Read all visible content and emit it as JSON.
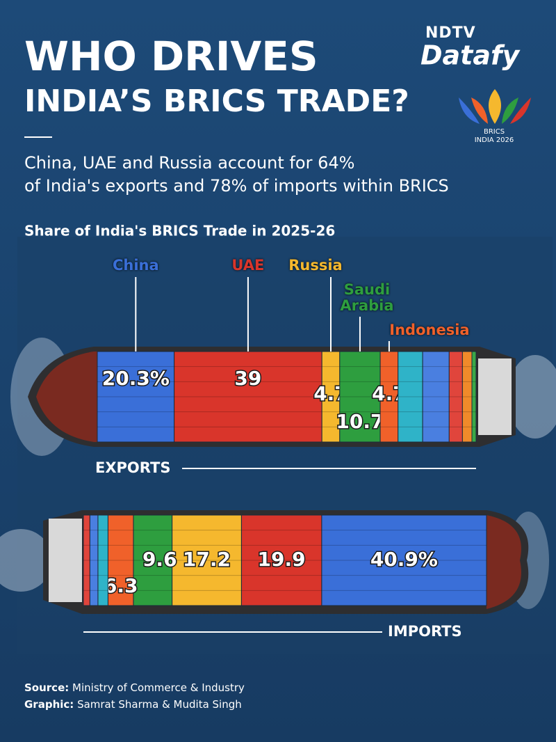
{
  "header": {
    "brand": "NDTV",
    "product": "Datafy",
    "logo_text": "BRICS",
    "logo_subtext": "INDIA 2026",
    "title_line1": "WHO DRIVES",
    "title_line2": "INDIA’S BRICS TRADE?",
    "subtitle_line1": "China, UAE and Russia account for 64%",
    "subtitle_line2": "of India's exports and 78% of imports within BRICS"
  },
  "chart_data": [
    {
      "type": "bar",
      "orientation": "horizontal",
      "stacked": true,
      "title": "Share of India's BRICS Trade in 2025-26",
      "label": "EXPORTS",
      "categories": [
        "China",
        "UAE",
        "Russia",
        "Saudi Arabia",
        "Indonesia",
        null,
        null,
        null,
        null,
        null
      ],
      "values": [
        20.3,
        39,
        4.7,
        10.7,
        4.7,
        6.5,
        7.0,
        3.5,
        2.5,
        1.1
      ],
      "value_labels": [
        "20.3%",
        "39",
        "4.7",
        "10.7",
        "4.7",
        null,
        null,
        null,
        null,
        null
      ],
      "colors": [
        "#3a6fd8",
        "#d9352b",
        "#f5b82e",
        "#2e9e3f",
        "#f0612a",
        "#2fb3c8",
        "#4a7fe0",
        "#e0453c",
        "#f08a2a",
        "#3aa848"
      ],
      "xlim": [
        0,
        100
      ]
    },
    {
      "type": "bar",
      "orientation": "horizontal",
      "stacked": true,
      "x_reversed": true,
      "label": "IMPORTS",
      "values": [
        40.9,
        19.9,
        17.2,
        9.6,
        6.3,
        2.5,
        2.0,
        1.6
      ],
      "value_labels": [
        "40.9%",
        "19.9",
        "17.2",
        "9.6",
        "6.3",
        null,
        null,
        null
      ],
      "colors": [
        "#3a6fd8",
        "#d9352b",
        "#f5b82e",
        "#2e9e3f",
        "#f0612a",
        "#2fb3c8",
        "#4a7fe0",
        "#e0453c"
      ],
      "xlim": [
        0,
        100
      ]
    }
  ],
  "footer": {
    "source_label": "Source:",
    "source": "Ministry of Commerce & Industry",
    "graphic_label": "Graphic:",
    "graphic": "Samrat Sharma & Mudita Singh"
  }
}
